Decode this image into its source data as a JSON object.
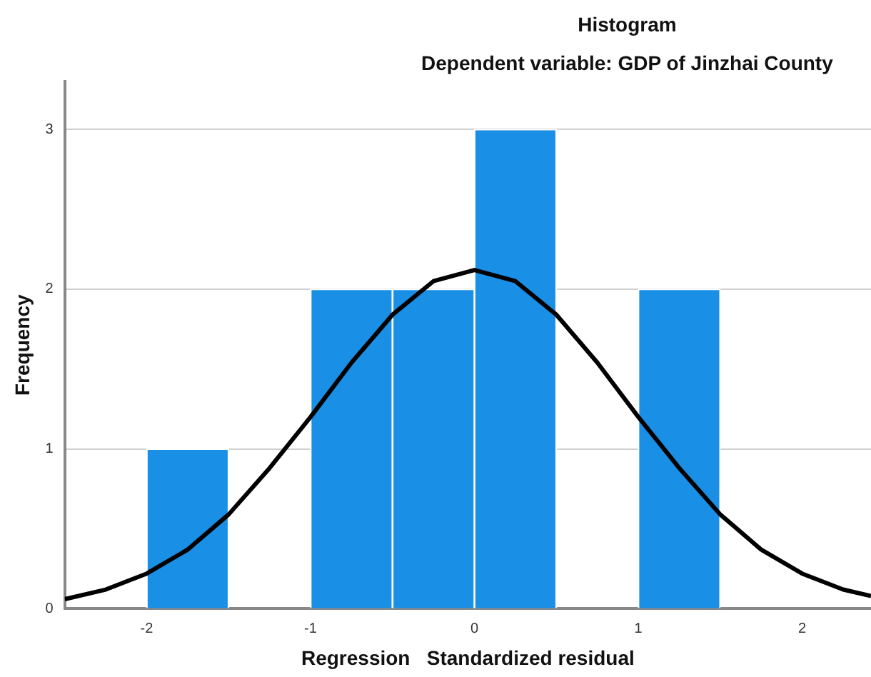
{
  "chart_data": {
    "type": "histogram",
    "title": "Histogram",
    "subtitle": "Dependent variable: GDP of Jinzhai County",
    "xlabel": "Regression   Standardized residual",
    "ylabel": "Frequency",
    "bins": [
      -2,
      -1.5,
      -1,
      -0.5,
      0,
      0.5,
      1,
      1.5
    ],
    "values": [
      1,
      0,
      2,
      2,
      3,
      0,
      2
    ],
    "color": "#1a8fe6",
    "series": [
      {
        "type": "line",
        "color": "#000000",
        "x": [
          -2.5,
          -2.25,
          -2,
          -1.75,
          -1.5,
          -1.25,
          -1,
          -0.75,
          -0.5,
          -0.25,
          0,
          0.25,
          0.5,
          0.75,
          1,
          1.25,
          1.5,
          1.75,
          2,
          2.25,
          2.42
        ],
        "values": [
          0.06,
          0.12,
          0.22,
          0.37,
          0.59,
          0.88,
          1.2,
          1.54,
          1.84,
          2.05,
          2.12,
          2.05,
          1.84,
          1.54,
          1.2,
          0.88,
          0.59,
          0.37,
          0.22,
          0.12,
          0.08
        ]
      }
    ],
    "xlim": [
      -2.5,
      2.42
    ],
    "xticks": [
      -2,
      -1,
      0,
      1,
      2
    ],
    "ylim": [
      0,
      3.3
    ],
    "yticks": [
      0,
      1,
      2,
      3
    ],
    "grid": "y",
    "legend": false
  }
}
